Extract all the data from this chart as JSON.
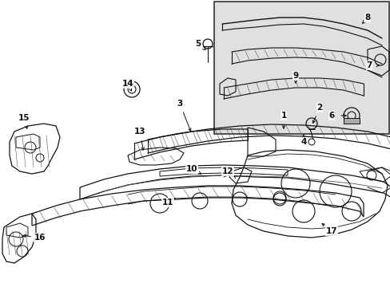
{
  "bg_color": "#ffffff",
  "fig_width": 4.89,
  "fig_height": 3.6,
  "dpi": 100,
  "inset_bg": "#e0e0e0",
  "line_color": "#111111",
  "hatch_color": "#555555"
}
